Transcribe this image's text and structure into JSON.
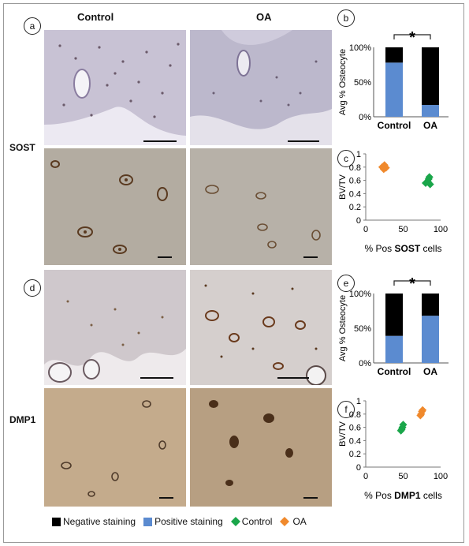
{
  "figure": {
    "col_control": "Control",
    "col_oa": "OA",
    "row_top": "SOST",
    "row_bottom": "DMP1",
    "panels": {
      "a": "a",
      "b": "b",
      "c": "c",
      "d": "d",
      "e": "e",
      "f": "f"
    }
  },
  "legend": {
    "negative": "Negative staining",
    "positive": "Positive staining",
    "control": "Control",
    "oa": "OA"
  },
  "colors": {
    "negative": "#000000",
    "positive": "#5b8bd0",
    "control": "#1aa64a",
    "oa": "#f0892c",
    "tissue_he": "#c8c4d6",
    "tissue_ihc": "#b5aea2"
  },
  "chart_data": [
    {
      "id": "b",
      "type": "bar",
      "stacked": true,
      "categories": [
        "Control",
        "OA"
      ],
      "ylabel": "Avg % Osteocyte",
      "ylim": [
        0,
        100
      ],
      "yticks": [
        "0%",
        "50%",
        "100%"
      ],
      "series": [
        {
          "name": "Positive staining",
          "values": [
            78,
            17
          ]
        },
        {
          "name": "Negative staining",
          "values": [
            22,
            83
          ]
        }
      ],
      "annotation": "*"
    },
    {
      "id": "c",
      "type": "scatter",
      "xlabel_prefix": "% Pos ",
      "xlabel_bold": "SOST",
      "xlabel_suffix": " cells",
      "ylabel": "BV/TV",
      "xlim": [
        0,
        100
      ],
      "ylim": [
        0,
        1
      ],
      "xticks": [
        "0",
        "50",
        "100"
      ],
      "yticks": [
        "0",
        "0.2",
        "0.4",
        "0.6",
        "0.8",
        "1"
      ],
      "series": [
        {
          "name": "OA",
          "points": [
            [
              22,
              0.8
            ],
            [
              25,
              0.83
            ],
            [
              27,
              0.79
            ],
            [
              24,
              0.77
            ]
          ]
        },
        {
          "name": "Control",
          "points": [
            [
              80,
              0.56
            ],
            [
              84,
              0.62
            ],
            [
              86,
              0.54
            ],
            [
              83,
              0.58
            ],
            [
              85,
              0.65
            ]
          ]
        }
      ]
    },
    {
      "id": "e",
      "type": "bar",
      "stacked": true,
      "categories": [
        "Control",
        "OA"
      ],
      "ylabel": "Avg % Osteocyte",
      "ylim": [
        0,
        100
      ],
      "yticks": [
        "0%",
        "50%",
        "100%"
      ],
      "series": [
        {
          "name": "Positive staining",
          "values": [
            39,
            68
          ]
        },
        {
          "name": "Negative staining",
          "values": [
            61,
            32
          ]
        }
      ],
      "annotation": "*"
    },
    {
      "id": "f",
      "type": "scatter",
      "xlabel_prefix": "% Pos ",
      "xlabel_bold": "DMP1",
      "xlabel_suffix": " cells",
      "ylabel": "BV/TV",
      "xlim": [
        0,
        100
      ],
      "ylim": [
        0,
        1
      ],
      "xticks": [
        "0",
        "50",
        "100"
      ],
      "yticks": [
        "0",
        "0.2",
        "0.4",
        "0.6",
        "0.8",
        "1"
      ],
      "series": [
        {
          "name": "Control",
          "points": [
            [
              47,
              0.55
            ],
            [
              49,
              0.6
            ],
            [
              50,
              0.64
            ],
            [
              48,
              0.57
            ]
          ]
        },
        {
          "name": "OA",
          "points": [
            [
              73,
              0.78
            ],
            [
              75,
              0.84
            ],
            [
              74,
              0.8
            ],
            [
              76,
              0.86
            ]
          ]
        }
      ]
    }
  ]
}
